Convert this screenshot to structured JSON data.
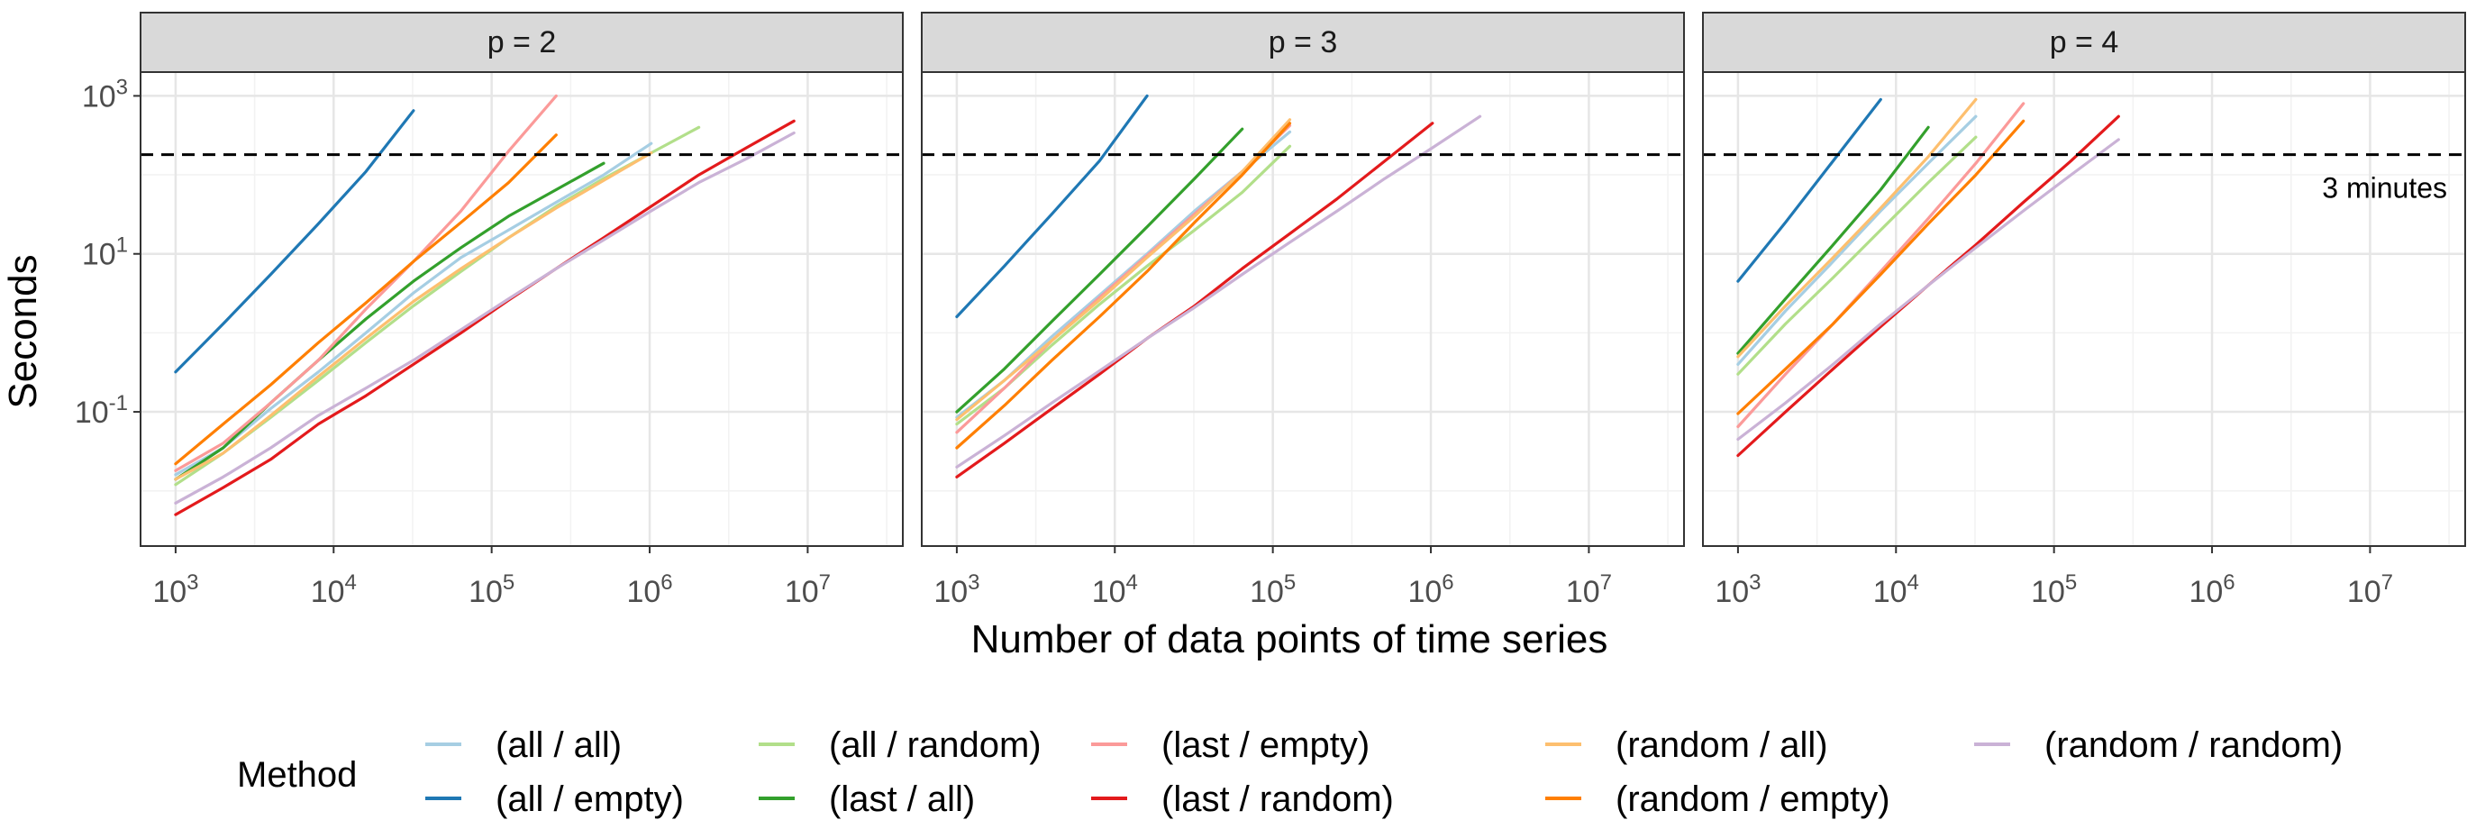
{
  "chart_data": {
    "type": "line",
    "facet_variable": "p",
    "facets": [
      {
        "label": "p = 2",
        "series": [
          {
            "name": "(all / all)",
            "x": [
              1000,
              2000,
              4000,
              8000,
              16000,
              32000,
              64000,
              128000,
              256000,
              512000,
              1024000
            ],
            "y": [
              0.016,
              0.035,
              0.11,
              0.32,
              1.0,
              3.2,
              9.0,
              20,
              45,
              100,
              250
            ]
          },
          {
            "name": "(all / empty)",
            "x": [
              1000,
              2000,
              4000,
              8000,
              16000,
              32000
            ],
            "y": [
              0.32,
              1.3,
              5.5,
              24,
              110,
              650
            ]
          },
          {
            "name": "(all / random)",
            "x": [
              1000,
              2000,
              4000,
              8000,
              16000,
              32000,
              64000,
              128000,
              256000,
              512000,
              1024000,
              2048000
            ],
            "y": [
              0.012,
              0.03,
              0.085,
              0.25,
              0.75,
              2.2,
              6,
              16,
              40,
              90,
              190,
              400
            ]
          },
          {
            "name": "(last / all)",
            "x": [
              1000,
              2000,
              4000,
              8000,
              16000,
              32000,
              64000,
              128000,
              256000,
              512000
            ],
            "y": [
              0.014,
              0.035,
              0.13,
              0.45,
              1.5,
              4.5,
              12,
              30,
              65,
              140
            ]
          },
          {
            "name": "(last / empty)",
            "x": [
              1000,
              2000,
              4000,
              8000,
              16000,
              32000,
              64000,
              128000,
              256000
            ],
            "y": [
              0.018,
              0.04,
              0.13,
              0.45,
              2.0,
              8,
              35,
              200,
              1000
            ]
          },
          {
            "name": "(last / random)",
            "x": [
              1000,
              2000,
              4000,
              8000,
              16000,
              32000,
              64000,
              128000,
              256000,
              512000,
              1024000,
              2048000,
              4096000,
              8192000
            ],
            "y": [
              0.005,
              0.011,
              0.025,
              0.07,
              0.16,
              0.4,
              1.0,
              2.6,
              6.5,
              16,
              40,
              100,
              220,
              480
            ]
          },
          {
            "name": "(random / all)",
            "x": [
              1000,
              2000,
              4000,
              8000,
              16000,
              32000,
              64000,
              128000,
              256000,
              512000,
              1024000
            ],
            "y": [
              0.014,
              0.03,
              0.09,
              0.28,
              0.85,
              2.5,
              6.5,
              16,
              38,
              85,
              190
            ]
          },
          {
            "name": "(random / empty)",
            "x": [
              1000,
              2000,
              4000,
              8000,
              16000,
              32000,
              64000,
              128000,
              256000
            ],
            "y": [
              0.022,
              0.07,
              0.22,
              0.75,
              2.4,
              8,
              25,
              80,
              320
            ]
          },
          {
            "name": "(random / random)",
            "x": [
              1000,
              2000,
              4000,
              8000,
              16000,
              32000,
              64000,
              128000,
              256000,
              512000,
              1024000,
              2048000,
              4096000,
              8192000
            ],
            "y": [
              0.007,
              0.015,
              0.035,
              0.09,
              0.2,
              0.45,
              1.1,
              2.7,
              6.5,
              15,
              35,
              80,
              160,
              340
            ]
          }
        ]
      },
      {
        "label": "p = 3",
        "series": [
          {
            "name": "(all / all)",
            "x": [
              1000,
              2000,
              4000,
              8000,
              16000,
              32000,
              64000,
              128000
            ],
            "y": [
              0.085,
              0.25,
              0.9,
              3.0,
              10,
              35,
              110,
              350
            ]
          },
          {
            "name": "(all / empty)",
            "x": [
              1000,
              2000,
              4000,
              8000,
              16000
            ],
            "y": [
              1.6,
              7,
              32,
              150,
              1000
            ]
          },
          {
            "name": "(all / random)",
            "x": [
              1000,
              2000,
              4000,
              8000,
              16000,
              32000,
              64000,
              128000
            ],
            "y": [
              0.07,
              0.2,
              0.7,
              2.3,
              7,
              20,
              60,
              230
            ]
          },
          {
            "name": "(last / all)",
            "x": [
              1000,
              2000,
              4000,
              8000,
              16000,
              32000,
              64000
            ],
            "y": [
              0.1,
              0.35,
              1.4,
              5.5,
              22,
              90,
              380
            ]
          },
          {
            "name": "(last / empty)",
            "x": [
              1000,
              2000,
              4000,
              8000,
              16000,
              32000,
              64000,
              128000
            ],
            "y": [
              0.055,
              0.2,
              0.8,
              2.8,
              9.5,
              32,
              110,
              420
            ]
          },
          {
            "name": "(last / random)",
            "x": [
              1000,
              2000,
              4000,
              8000,
              16000,
              32000,
              64000,
              128000,
              256000,
              512000,
              1024000
            ],
            "y": [
              0.015,
              0.04,
              0.11,
              0.3,
              0.85,
              2.2,
              6.5,
              18,
              50,
              150,
              450
            ]
          },
          {
            "name": "(random / all)",
            "x": [
              1000,
              2000,
              4000,
              8000,
              16000,
              32000,
              64000,
              128000
            ],
            "y": [
              0.08,
              0.25,
              0.8,
              2.6,
              9,
              30,
              110,
              500
            ]
          },
          {
            "name": "(random / empty)",
            "x": [
              1000,
              2000,
              4000,
              8000,
              16000,
              32000,
              64000,
              128000
            ],
            "y": [
              0.035,
              0.12,
              0.45,
              1.6,
              6,
              25,
              100,
              450
            ]
          },
          {
            "name": "(random / random)",
            "x": [
              1000,
              2000,
              4000,
              8000,
              16000,
              32000,
              64000,
              128000,
              256000,
              512000,
              1024000,
              2048000
            ],
            "y": [
              0.02,
              0.05,
              0.13,
              0.33,
              0.85,
              2.1,
              5.5,
              14,
              35,
              90,
              220,
              550
            ]
          }
        ]
      },
      {
        "label": "p = 4",
        "series": [
          {
            "name": "(all / all)",
            "x": [
              1000,
              2000,
              4000,
              8000,
              16000,
              32000
            ],
            "y": [
              0.4,
              1.9,
              8,
              35,
              140,
              550
            ]
          },
          {
            "name": "(all / empty)",
            "x": [
              1000,
              2000,
              4000,
              8000
            ],
            "y": [
              4.5,
              25,
              150,
              900
            ]
          },
          {
            "name": "(all / random)",
            "x": [
              1000,
              2000,
              4000,
              8000,
              16000,
              32000
            ],
            "y": [
              0.3,
              1.3,
              5,
              20,
              80,
              300
            ]
          },
          {
            "name": "(last / all)",
            "x": [
              1000,
              2000,
              4000,
              8000,
              16000
            ],
            "y": [
              0.55,
              2.7,
              13,
              65,
              400
            ]
          },
          {
            "name": "(last / empty)",
            "x": [
              1000,
              2000,
              4000,
              8000,
              16000,
              32000,
              64000
            ],
            "y": [
              0.065,
              0.3,
              1.3,
              6,
              28,
              140,
              800
            ]
          },
          {
            "name": "(last / random)",
            "x": [
              1000,
              2000,
              4000,
              8000,
              16000,
              32000,
              64000,
              128000,
              256000
            ],
            "y": [
              0.028,
              0.1,
              0.35,
              1.2,
              4,
              13,
              45,
              150,
              550
            ]
          },
          {
            "name": "(random / all)",
            "x": [
              1000,
              2000,
              4000,
              8000,
              16000,
              32000
            ],
            "y": [
              0.5,
              2.2,
              9,
              38,
              170,
              900
            ]
          },
          {
            "name": "(random / empty)",
            "x": [
              1000,
              2000,
              4000,
              8000,
              16000,
              32000,
              64000
            ],
            "y": [
              0.095,
              0.35,
              1.3,
              5.5,
              24,
              100,
              480
            ]
          },
          {
            "name": "(random / random)",
            "x": [
              1000,
              2000,
              4000,
              8000,
              16000,
              32000,
              64000,
              128000,
              256000
            ],
            "y": [
              0.045,
              0.13,
              0.4,
              1.3,
              4,
              12,
              35,
              100,
              280
            ]
          }
        ]
      }
    ],
    "colors": {
      "(all / all)": "#a6cee3",
      "(all / empty)": "#1f78b4",
      "(all / random)": "#b2df8a",
      "(last / all)": "#33a02c",
      "(last / empty)": "#fb9a99",
      "(last / random)": "#e31a1c",
      "(random / all)": "#fdbf6f",
      "(random / empty)": "#ff7f00",
      "(random / random)": "#cab2d6"
    },
    "xlabel": "Number of data points of time series",
    "ylabel": "Seconds",
    "x_scale": "log10",
    "y_scale": "log10",
    "xlim": [
      600,
      40000000
    ],
    "ylim": [
      0.002,
      2000
    ],
    "x_ticks": [
      1000,
      10000,
      100000,
      1000000,
      10000000
    ],
    "x_tick_labels": [
      {
        "base": "10",
        "exp": "3"
      },
      {
        "base": "10",
        "exp": "4"
      },
      {
        "base": "10",
        "exp": "5"
      },
      {
        "base": "10",
        "exp": "6"
      },
      {
        "base": "10",
        "exp": "7"
      }
    ],
    "y_ticks": [
      0.1,
      10,
      1000
    ],
    "y_tick_labels": [
      {
        "base": "10",
        "exp": "-1"
      },
      {
        "base": "10",
        "exp": "1"
      },
      {
        "base": "10",
        "exp": "3"
      }
    ],
    "reference_line": {
      "y": 180,
      "style": "dashed",
      "label": "3 minutes",
      "label_facet": 2
    },
    "legend": {
      "title": "Method",
      "position": "bottom",
      "entries": [
        "(all / all)",
        "(all / empty)",
        "(all / random)",
        "(last / all)",
        "(last / empty)",
        "(last / random)",
        "(random / all)",
        "(random / empty)",
        "(random / random)"
      ]
    },
    "grid": true
  }
}
